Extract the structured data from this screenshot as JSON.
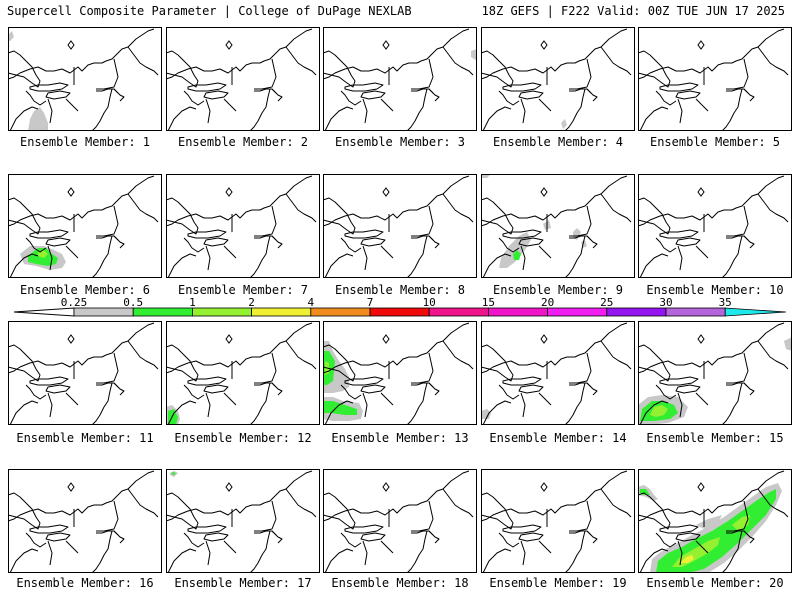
{
  "header": {
    "left": "Supercell Composite Parameter | College of DuPage NEXLAB",
    "right": "18Z GEFS | F222 Valid: 00Z TUE JUN 17 2025"
  },
  "colorbar": {
    "labels": [
      "0.25",
      "0.5",
      "1",
      "2",
      "4",
      "7",
      "10",
      "15",
      "20",
      "25",
      "30",
      "35"
    ],
    "colors": [
      "#c8c8c8",
      "#32ee32",
      "#96f032",
      "#f0f032",
      "#f08c1e",
      "#f00a0a",
      "#f0148c",
      "#f014c8",
      "#f01ef0",
      "#9614f0",
      "#b464dc",
      "#20e8e8"
    ]
  },
  "members": [
    {
      "caption": "Ensemble Member: 1"
    },
    {
      "caption": "Ensemble Member: 2"
    },
    {
      "caption": "Ensemble Member: 3"
    },
    {
      "caption": "Ensemble Member: 4"
    },
    {
      "caption": "Ensemble Member: 5"
    },
    {
      "caption": "Ensemble Member: 6"
    },
    {
      "caption": "Ensemble Member: 7"
    },
    {
      "caption": "Ensemble Member: 8"
    },
    {
      "caption": "Ensemble Member: 9"
    },
    {
      "caption": "Ensemble Member: 10"
    },
    {
      "caption": "Ensemble Member: 11"
    },
    {
      "caption": "Ensemble Member: 12"
    },
    {
      "caption": "Ensemble Member: 13"
    },
    {
      "caption": "Ensemble Member: 14"
    },
    {
      "caption": "Ensemble Member: 15"
    },
    {
      "caption": "Ensemble Member: 16"
    },
    {
      "caption": "Ensemble Member: 17"
    },
    {
      "caption": "Ensemble Member: 18"
    },
    {
      "caption": "Ensemble Member: 19"
    },
    {
      "caption": "Ensemble Member: 20"
    }
  ]
}
